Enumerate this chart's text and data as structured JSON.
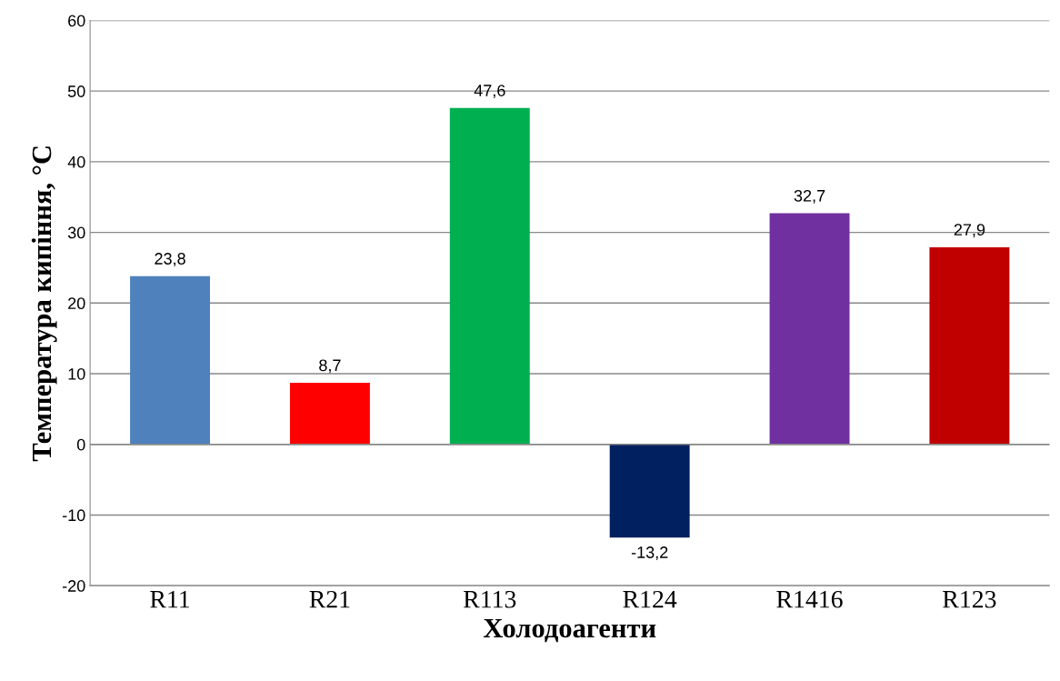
{
  "chart_data": {
    "type": "bar",
    "xlabel": "Холодоагенти",
    "ylabel": "Температура кипіння, °C",
    "categories": [
      "R11",
      "R21",
      "R113",
      "R124",
      "R1416",
      "R123"
    ],
    "values": [
      23.8,
      8.7,
      47.6,
      -13.2,
      32.7,
      27.9
    ],
    "value_labels": [
      "23,8",
      "8,7",
      "47,6",
      "-13,2",
      "32,7",
      "27,9"
    ],
    "colors": [
      "#4f81bd",
      "#ff0000",
      "#00b050",
      "#002060",
      "#7030a0",
      "#c00000"
    ],
    "ylim": [
      -20,
      60
    ],
    "yticks": [
      -20,
      -10,
      0,
      10,
      20,
      30,
      40,
      50,
      60
    ],
    "grid": "y",
    "legend": false
  }
}
